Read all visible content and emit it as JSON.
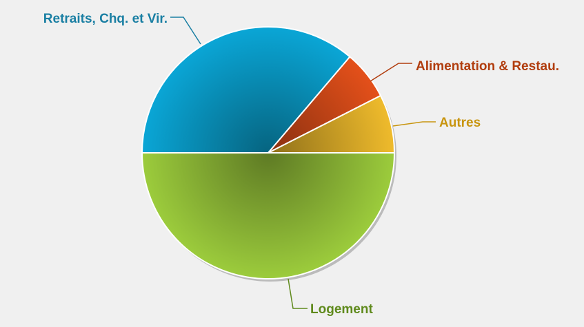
{
  "chart_data": {
    "type": "pie",
    "title": "",
    "slices": [
      {
        "label": "Logement",
        "value": 50.0,
        "color": "#9ccc3c",
        "label_color": "#5f8a1c"
      },
      {
        "label": "Retraits, Chq. et Vir.",
        "value": 36.2,
        "color": "#0aa6d6",
        "label_color": "#1a7fa3"
      },
      {
        "label": "Alimentation & Restau.",
        "value": 6.3,
        "color": "#e4501a",
        "label_color": "#b13d0e"
      },
      {
        "label": "Autres",
        "value": 7.5,
        "color": "#efbb2c",
        "label_color": "#c8950f"
      }
    ],
    "start_angle_deg": 0,
    "direction": "clockwise"
  }
}
